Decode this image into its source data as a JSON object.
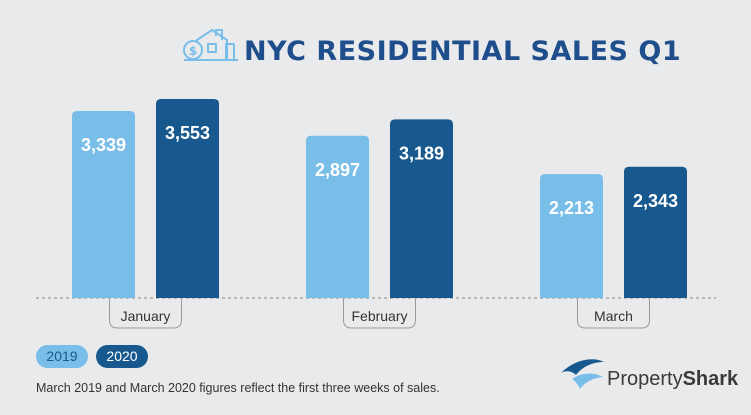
{
  "colors": {
    "series_2019": "#79bde9",
    "series_2020": "#17598e",
    "title": "#1f4e8c",
    "axis_line": "#9a9a9a",
    "background": "#e9eaeb"
  },
  "chart_data": {
    "type": "bar",
    "title": "NYC RESIDENTIAL SALES Q1",
    "categories": [
      "January",
      "February",
      "March"
    ],
    "series": [
      {
        "name": "2019",
        "values": [
          3339,
          2897,
          2213
        ],
        "labels": [
          "3,339",
          "2,897",
          "2,213"
        ]
      },
      {
        "name": "2020",
        "values": [
          3553,
          3189,
          2343
        ],
        "labels": [
          "3,553",
          "3,189",
          "2,343"
        ]
      }
    ],
    "ylim": [
      0,
      3750
    ],
    "xlabel": "",
    "ylabel": "",
    "grid": false,
    "legend_position": "bottom-left"
  },
  "footnote": "March 2019 and March 2020 figures reflect the first three weeks of sales.",
  "brand": {
    "part1": "Property",
    "part2": "Shark"
  },
  "icons": {
    "title_icon": "house-with-dollar-icon",
    "brand_icon": "shark-logo-icon"
  }
}
